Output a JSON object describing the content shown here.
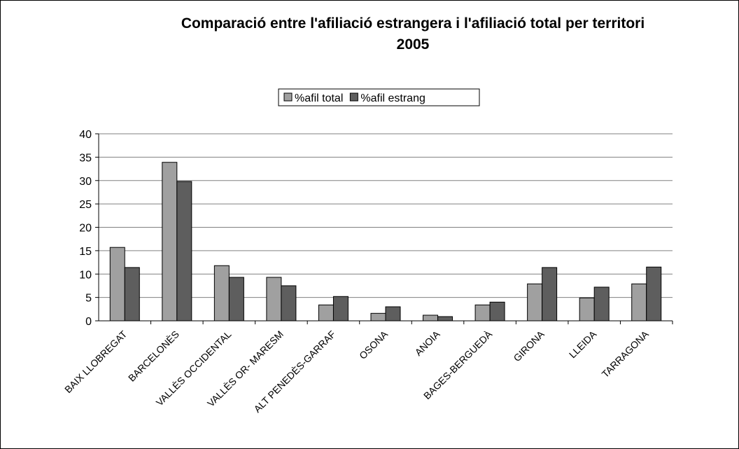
{
  "chart_data": {
    "type": "bar",
    "title": "Comparació entre l'afiliació estrangera i l'afiliació total per territori",
    "subtitle": "2005",
    "categories": [
      "BAIX LLOBREGAT",
      "BARCELONÈS",
      "VALLÈS OCCIDENTAL",
      "VALLÈS OR- MARESM",
      "ALT PENEDÈS-GARRAF",
      "OSONA",
      "ANOIA",
      "BAGES-BERGUEDÀ",
      "GIRONA",
      "LLEIDA",
      "TARRAGONA"
    ],
    "series": [
      {
        "name": "%afil total",
        "color": "#a0a0a0",
        "values": [
          15.7,
          33.9,
          11.8,
          9.3,
          3.4,
          1.6,
          1.2,
          3.4,
          7.9,
          4.9,
          7.9
        ]
      },
      {
        "name": "%afil estrang",
        "color": "#5e5e5e",
        "values": [
          11.4,
          29.8,
          9.3,
          7.5,
          5.2,
          3.0,
          0.9,
          4.0,
          11.4,
          7.2,
          11.5
        ]
      }
    ],
    "ylim": [
      0,
      40
    ],
    "yticks": [
      0,
      5,
      10,
      15,
      20,
      25,
      30,
      35,
      40
    ],
    "grid": true,
    "legend": "top"
  }
}
